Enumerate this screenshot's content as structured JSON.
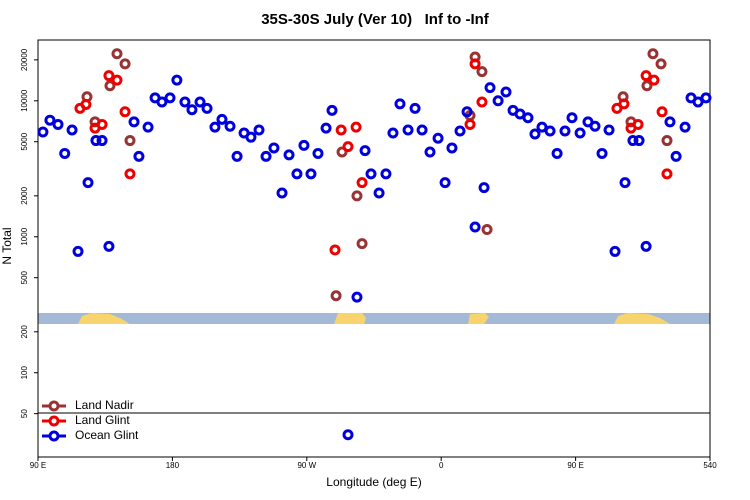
{
  "chart_data": {
    "type": "scatter",
    "title": "35S-30S July (Ver 10)   Inf to -Inf",
    "x_label": "Longitude (deg E)",
    "y_label": "N Total",
    "log_y": true,
    "grid": false,
    "legend": "lower left",
    "xlim": [
      90,
      540
    ],
    "xticks": [
      {
        "value": 90,
        "label": "90 E"
      },
      180,
      {
        "value": 270,
        "label": "90 W"
      },
      {
        "value": 360,
        "label": "0"
      },
      {
        "value": 450,
        "label": "90 E"
      },
      540
    ],
    "ylim": [
      24,
      28000
    ],
    "yticks": [
      50,
      100,
      200,
      500,
      1000,
      2000,
      5000,
      10000,
      20000
    ],
    "series": [
      {
        "name": "Land Nadir",
        "color": "#993333",
        "x": [
          122.8,
          128.2,
          142.9,
          148.3,
          138.2,
          151.6,
          289.6,
          293.6,
          303.6,
          307,
          379.3,
          382.7,
          387.3,
          390.7,
          481.8,
          487.1,
          501.8,
          507.2,
          497.8,
          511.2
        ],
        "values": [
          10700,
          7000,
          22200,
          18700,
          12900,
          5100,
          368,
          4200,
          2000,
          890,
          7800,
          21000,
          16400,
          1130,
          10700,
          7000,
          22200,
          18700,
          12900,
          5100
        ]
      },
      {
        "name": "Land Glint",
        "color": "#ee0000",
        "x": [
          118.1,
          122.1,
          128.2,
          132.9,
          137.5,
          142.9,
          148.3,
          151.6,
          288.9,
          293,
          297.6,
          303,
          307,
          379.3,
          382.7,
          387.3,
          477.7,
          482.4,
          487.1,
          491.8,
          497.2,
          502.5,
          507.9,
          511.2
        ],
        "values": [
          8800,
          9400,
          6300,
          6700,
          15300,
          14200,
          8300,
          2900,
          800,
          6100,
          4600,
          6400,
          2500,
          6700,
          18700,
          9800,
          8800,
          9500,
          6300,
          6700,
          15300,
          14200,
          8300,
          2900
        ]
      },
      {
        "name": "Ocean Glint",
        "color": "#0000dd",
        "x": [
          93.3,
          98,
          103.4,
          107.9,
          112.8,
          116.8,
          123.5,
          128.8,
          132.9,
          137.5,
          154.3,
          157.6,
          163.7,
          168.4,
          173,
          178.4,
          183,
          188.4,
          193.1,
          198.5,
          203.2,
          208.5,
          213.2,
          218.6,
          223.3,
          228,
          232.6,
          238,
          242.7,
          248,
          253.4,
          258.1,
          263.4,
          268.1,
          272.8,
          277.5,
          282.9,
          286.9,
          303.6,
          309,
          313,
          318.4,
          323,
          327.7,
          332.4,
          337.8,
          342.5,
          347.2,
          352.5,
          357.9,
          362.6,
          367.2,
          372.6,
          377.3,
          382.7,
          388.7,
          392.7,
          398.1,
          403.4,
          408.1,
          412.8,
          418.1,
          422.8,
          427.5,
          432.9,
          437.6,
          442.9,
          447.6,
          453,
          458.3,
          463,
          467.7,
          472.4,
          476.4,
          483.1,
          488.4,
          492.5,
          497.2,
          513.2,
          517.3,
          523.3,
          527.3,
          532,
          537.3,
          297.6
        ],
        "values": [
          5900,
          7200,
          6700,
          4100,
          6100,
          780,
          2500,
          5100,
          5100,
          850,
          7000,
          3900,
          6400,
          10500,
          9800,
          10500,
          14200,
          9800,
          8600,
          9800,
          8800,
          6400,
          7300,
          6500,
          3900,
          5800,
          5400,
          6100,
          3900,
          4500,
          2100,
          4000,
          2900,
          4700,
          2900,
          4100,
          6300,
          8500,
          360,
          4300,
          2900,
          2100,
          2900,
          5800,
          9500,
          6100,
          8800,
          6100,
          4200,
          5300,
          2500,
          4500,
          6000,
          8300,
          1180,
          2300,
          12500,
          10000,
          11600,
          8500,
          8000,
          7500,
          5700,
          6400,
          6000,
          4100,
          6000,
          7500,
          5800,
          7000,
          6500,
          4100,
          6100,
          780,
          2500,
          5100,
          5100,
          850,
          7000,
          3900,
          6400,
          10500,
          9800,
          10500,
          35
        ]
      }
    ]
  }
}
